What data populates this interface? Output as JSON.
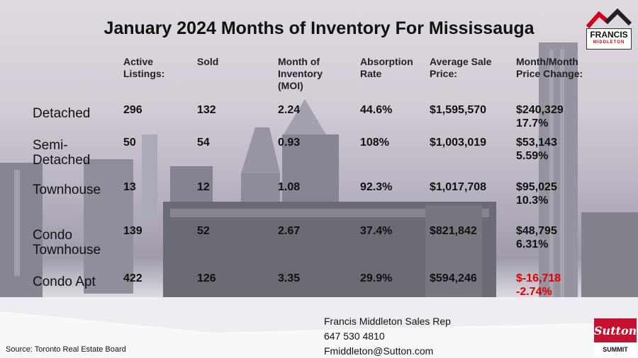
{
  "title": "January 2024 Months of Inventory For Mississauga",
  "headers": [
    "Active\nListings:",
    "Sold",
    "Month of\nInventory\n(MOI)",
    "Absorption\nRate",
    "Average Sale\nPrice:",
    "Month/Month\nPrice Change:"
  ],
  "rows": [
    {
      "label": "Detached",
      "active": "296",
      "sold": "132",
      "moi": "2.24",
      "absorption": "44.6%",
      "avg_price": "$1,595,570",
      "change_amount": "$240,329",
      "change_pct": "17.7%"
    },
    {
      "label": "Semi-\nDetached",
      "active": "50",
      "sold": "54",
      "moi": "0.93",
      "absorption": "108%",
      "avg_price": "$1,003,019",
      "change_amount": "$53,143",
      "change_pct": "5.59%"
    },
    {
      "label": "Townhouse",
      "active": "13",
      "sold": "12",
      "moi": "1.08",
      "absorption": "92.3%",
      "avg_price": "$1,017,708",
      "change_amount": "$95,025",
      "change_pct": "10.3%"
    },
    {
      "label": "Condo\nTownhouse",
      "active": "139",
      "sold": "52",
      "moi": "2.67",
      "absorption": "37.4%",
      "avg_price": "$821,842",
      "change_amount": "$48,795",
      "change_pct": "6.31%"
    },
    {
      "label": "Condo Apt",
      "active": "422",
      "sold": "126",
      "moi": "3.35",
      "absorption": "29.9%",
      "avg_price": "$594,246",
      "change_amount": "$-16,718",
      "change_pct": "-2.74%"
    }
  ],
  "negative_color": "#e00000",
  "source": "Source: Toronto Real Estate Board",
  "contact": {
    "name": "Francis Middleton Sales Rep",
    "phone": "647 530 4810",
    "email": "Fmiddleton@Sutton.com"
  },
  "logos": {
    "francis_name": "FRANCIS",
    "francis_sub": "MIDDLETON",
    "sutton_name": "Sutton",
    "sutton_sub": "SUMMIT"
  }
}
